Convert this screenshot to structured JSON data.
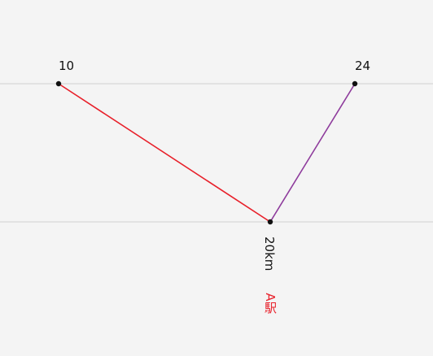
{
  "diagram": {
    "top_left_value": "10",
    "top_right_value": "24",
    "distance_label": "20km",
    "station_label": "A駅",
    "colors": {
      "background": "#f4f4f4",
      "guide_line": "#dcdcdc",
      "left_line": "#e8202a",
      "right_line": "#8e3b9c",
      "point": "#111111",
      "station_text": "#e8202a"
    }
  }
}
